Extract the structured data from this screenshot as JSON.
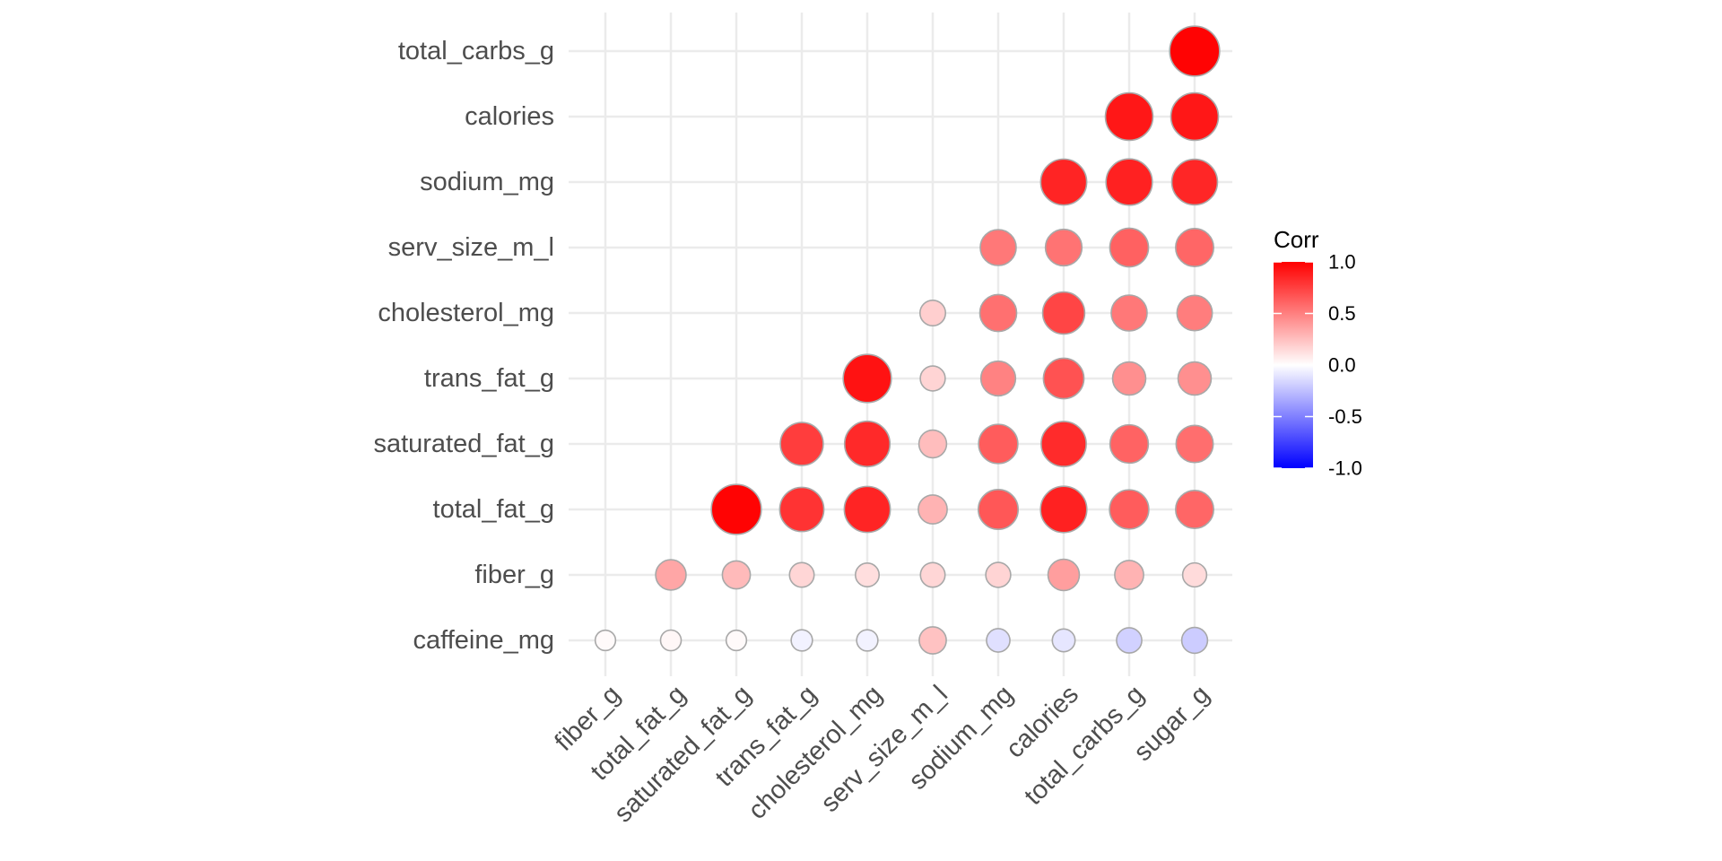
{
  "chart_data": {
    "type": "heatmap",
    "style": "circle correlogram (lower triangle)",
    "x_labels": [
      "fiber_g",
      "total_fat_g",
      "saturated_fat_g",
      "trans_fat_g",
      "cholesterol_mg",
      "serv_size_m_l",
      "sodium_mg",
      "calories",
      "total_carbs_g",
      "sugar_g"
    ],
    "y_labels": [
      "caffeine_mg",
      "fiber_g",
      "total_fat_g",
      "saturated_fat_g",
      "trans_fat_g",
      "cholesterol_mg",
      "serv_size_m_l",
      "sodium_mg",
      "calories",
      "total_carbs_g"
    ],
    "cells": [
      {
        "x": "fiber_g",
        "y": "caffeine_mg",
        "value": 0.02
      },
      {
        "x": "total_fat_g",
        "y": "caffeine_mg",
        "value": 0.03
      },
      {
        "x": "saturated_fat_g",
        "y": "caffeine_mg",
        "value": 0.02
      },
      {
        "x": "trans_fat_g",
        "y": "caffeine_mg",
        "value": -0.05
      },
      {
        "x": "cholesterol_mg",
        "y": "caffeine_mg",
        "value": -0.05
      },
      {
        "x": "serv_size_m_l",
        "y": "caffeine_mg",
        "value": 0.24
      },
      {
        "x": "sodium_mg",
        "y": "caffeine_mg",
        "value": -0.12
      },
      {
        "x": "calories",
        "y": "caffeine_mg",
        "value": -0.1
      },
      {
        "x": "total_carbs_g",
        "y": "caffeine_mg",
        "value": -0.18
      },
      {
        "x": "sugar_g",
        "y": "caffeine_mg",
        "value": -0.2
      },
      {
        "x": "total_fat_g",
        "y": "fiber_g",
        "value": 0.35
      },
      {
        "x": "saturated_fat_g",
        "y": "fiber_g",
        "value": 0.27
      },
      {
        "x": "trans_fat_g",
        "y": "fiber_g",
        "value": 0.16
      },
      {
        "x": "cholesterol_mg",
        "y": "fiber_g",
        "value": 0.13
      },
      {
        "x": "serv_size_m_l",
        "y": "fiber_g",
        "value": 0.16
      },
      {
        "x": "sodium_mg",
        "y": "fiber_g",
        "value": 0.17
      },
      {
        "x": "calories",
        "y": "fiber_g",
        "value": 0.38
      },
      {
        "x": "total_carbs_g",
        "y": "fiber_g",
        "value": 0.3
      },
      {
        "x": "sugar_g",
        "y": "fiber_g",
        "value": 0.14
      },
      {
        "x": "saturated_fat_g",
        "y": "total_fat_g",
        "value": 0.99
      },
      {
        "x": "trans_fat_g",
        "y": "total_fat_g",
        "value": 0.8
      },
      {
        "x": "cholesterol_mg",
        "y": "total_fat_g",
        "value": 0.86
      },
      {
        "x": "serv_size_m_l",
        "y": "total_fat_g",
        "value": 0.3
      },
      {
        "x": "sodium_mg",
        "y": "total_fat_g",
        "value": 0.66
      },
      {
        "x": "calories",
        "y": "total_fat_g",
        "value": 0.87
      },
      {
        "x": "total_carbs_g",
        "y": "total_fat_g",
        "value": 0.64
      },
      {
        "x": "sugar_g",
        "y": "total_fat_g",
        "value": 0.6
      },
      {
        "x": "trans_fat_g",
        "y": "saturated_fat_g",
        "value": 0.76
      },
      {
        "x": "cholesterol_mg",
        "y": "saturated_fat_g",
        "value": 0.84
      },
      {
        "x": "serv_size_m_l",
        "y": "saturated_fat_g",
        "value": 0.26
      },
      {
        "x": "sodium_mg",
        "y": "saturated_fat_g",
        "value": 0.64
      },
      {
        "x": "calories",
        "y": "saturated_fat_g",
        "value": 0.83
      },
      {
        "x": "total_carbs_g",
        "y": "saturated_fat_g",
        "value": 0.61
      },
      {
        "x": "sugar_g",
        "y": "saturated_fat_g",
        "value": 0.57
      },
      {
        "x": "cholesterol_mg",
        "y": "trans_fat_g",
        "value": 0.93
      },
      {
        "x": "serv_size_m_l",
        "y": "trans_fat_g",
        "value": 0.17
      },
      {
        "x": "sodium_mg",
        "y": "trans_fat_g",
        "value": 0.49
      },
      {
        "x": "calories",
        "y": "trans_fat_g",
        "value": 0.68
      },
      {
        "x": "total_carbs_g",
        "y": "trans_fat_g",
        "value": 0.44
      },
      {
        "x": "sugar_g",
        "y": "trans_fat_g",
        "value": 0.44
      },
      {
        "x": "serv_size_m_l",
        "y": "cholesterol_mg",
        "value": 0.19
      },
      {
        "x": "sodium_mg",
        "y": "cholesterol_mg",
        "value": 0.56
      },
      {
        "x": "calories",
        "y": "cholesterol_mg",
        "value": 0.73
      },
      {
        "x": "total_carbs_g",
        "y": "cholesterol_mg",
        "value": 0.53
      },
      {
        "x": "sugar_g",
        "y": "cholesterol_mg",
        "value": 0.51
      },
      {
        "x": "sodium_mg",
        "y": "serv_size_m_l",
        "value": 0.53
      },
      {
        "x": "calories",
        "y": "serv_size_m_l",
        "value": 0.55
      },
      {
        "x": "total_carbs_g",
        "y": "serv_size_m_l",
        "value": 0.62
      },
      {
        "x": "sugar_g",
        "y": "serv_size_m_l",
        "value": 0.6
      },
      {
        "x": "calories",
        "y": "sodium_mg",
        "value": 0.86
      },
      {
        "x": "total_carbs_g",
        "y": "sodium_mg",
        "value": 0.87
      },
      {
        "x": "sugar_g",
        "y": "sodium_mg",
        "value": 0.85
      },
      {
        "x": "total_carbs_g",
        "y": "calories",
        "value": 0.91
      },
      {
        "x": "sugar_g",
        "y": "calories",
        "value": 0.91
      },
      {
        "x": "sugar_g",
        "y": "total_carbs_g",
        "value": 0.99
      }
    ],
    "legend": {
      "title": "Corr",
      "ticks": [
        1.0,
        0.5,
        0.0,
        -0.5,
        -1.0
      ],
      "tick_labels": [
        "1.0",
        "0.5",
        "0.0",
        "-0.5",
        "-1.0"
      ],
      "low_color": "#0000ff",
      "mid_color": "#ffffff",
      "high_color": "#ff0000",
      "range": [
        -1,
        1
      ],
      "placement": "right"
    },
    "colors": {
      "grid": "#ebebeb",
      "circle_outline": "#a8a8a8",
      "tick_text": "#4d4d4d"
    },
    "grid": true,
    "title": "",
    "xlabel": "",
    "ylabel": ""
  }
}
